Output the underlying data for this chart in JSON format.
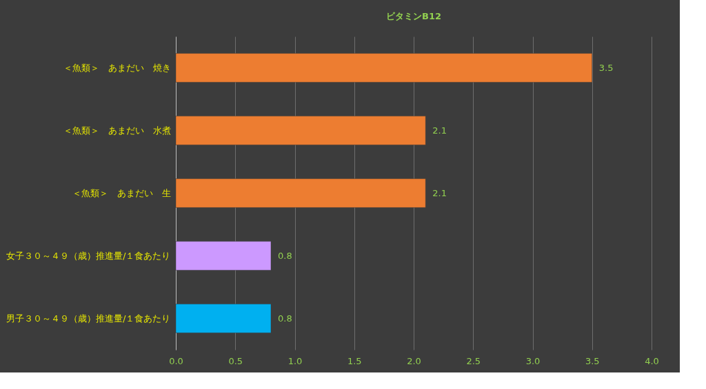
{
  "chart_data": {
    "type": "bar",
    "orientation": "horizontal",
    "title": "ビタミンB12",
    "categories": [
      "＜魚類＞　あまだい　焼き",
      "＜魚類＞　あまだい　水煮",
      "＜魚類＞　あまだい　生",
      "女子３０～４９（歳）推進量/１食あたり",
      "男子３０～４９（歳）推進量/１食あたり"
    ],
    "values": [
      3.5,
      2.1,
      2.1,
      0.8,
      0.8
    ],
    "colors": [
      "#ed7d31",
      "#ed7d31",
      "#ed7d31",
      "#cc99ff",
      "#00b0f0"
    ],
    "xlim": [
      0,
      4
    ],
    "xticks": [
      {
        "value": 0,
        "label": "0.0"
      },
      {
        "value": 0.5,
        "label": "0.5"
      },
      {
        "value": 1,
        "label": "1.0"
      },
      {
        "value": 1.5,
        "label": "1.5"
      },
      {
        "value": 2,
        "label": "2.0"
      },
      {
        "value": 2.5,
        "label": "2.5"
      },
      {
        "value": 3,
        "label": "3.0"
      },
      {
        "value": 3.5,
        "label": "3.5"
      },
      {
        "value": 4,
        "label": "4.0"
      }
    ],
    "grid": "x",
    "data_labels": true,
    "legend": false
  }
}
